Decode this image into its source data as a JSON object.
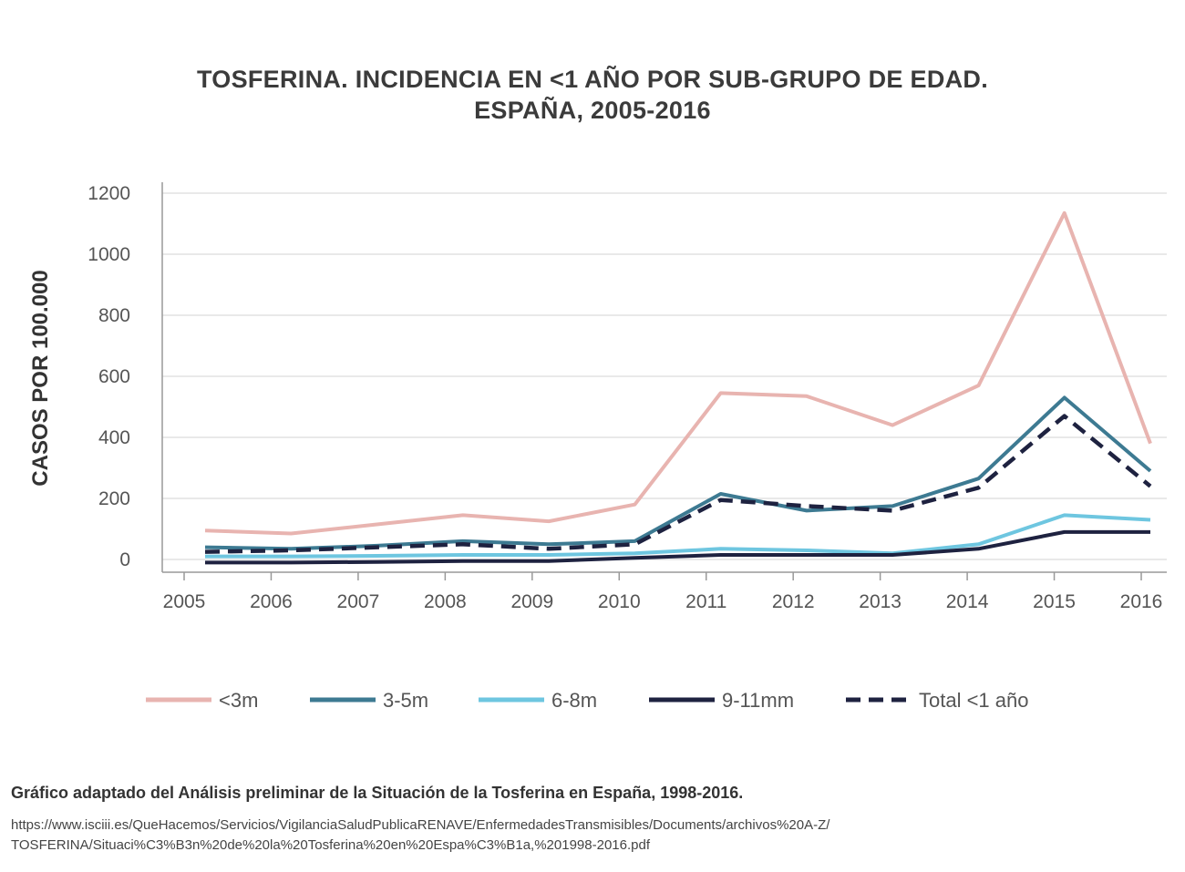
{
  "title": {
    "line1": "TOSFERINA. INCIDENCIA EN <1 AÑO POR SUB-GRUPO DE EDAD.",
    "line2": "ESPAÑA, 2005-2016"
  },
  "chart_data": {
    "type": "line",
    "title": "TOSFERINA. INCIDENCIA EN <1 AÑO POR SUB-GRUPO DE EDAD. ESPAÑA, 2005-2016",
    "xlabel": "",
    "ylabel": "CASOS POR 100.000",
    "ylim": [
      0,
      1200
    ],
    "yticks": [
      "0",
      "200",
      "400",
      "600",
      "800",
      "1000",
      "1200"
    ],
    "categories": [
      "2005",
      "2006",
      "2007",
      "2008",
      "2009",
      "2010",
      "2011",
      "2012",
      "2013",
      "2014",
      "2015",
      "2016"
    ],
    "grid": true,
    "legend": "bottom",
    "series": [
      {
        "name": "<3m",
        "color": "#e8b4b0",
        "dash": false,
        "values": [
          95,
          85,
          115,
          145,
          125,
          180,
          545,
          535,
          440,
          570,
          1135,
          380
        ]
      },
      {
        "name": "3-5m",
        "color": "#3d7a92",
        "dash": false,
        "values": [
          40,
          35,
          45,
          60,
          50,
          60,
          215,
          160,
          175,
          265,
          530,
          290
        ]
      },
      {
        "name": "6-8m",
        "color": "#6ec6e0",
        "dash": false,
        "values": [
          10,
          10,
          12,
          15,
          15,
          20,
          35,
          30,
          20,
          50,
          145,
          130
        ]
      },
      {
        "name": "9-11mm",
        "color": "#1e2240",
        "dash": false,
        "values": [
          -10,
          -10,
          -8,
          -5,
          -5,
          5,
          15,
          15,
          15,
          35,
          90,
          90
        ]
      },
      {
        "name": "Total <1 año",
        "color": "#1e2240",
        "dash": true,
        "values": [
          25,
          30,
          40,
          50,
          35,
          50,
          195,
          175,
          160,
          235,
          470,
          240
        ]
      }
    ]
  },
  "source": "Gráfico adaptado del Análisis preliminar de la Situación de la Tosferina en España, 1998-2016.",
  "url": {
    "line1": "https://www.isciii.es/QueHacemos/Servicios/VigilanciaSaludPublicaRENAVE/EnfermedadesTransmisibles/Documents/archivos%20A-Z/",
    "line2": "TOSFERINA/Situaci%C3%B3n%20de%20la%20Tosferina%20en%20Espa%C3%B1a,%201998-2016.pdf"
  }
}
